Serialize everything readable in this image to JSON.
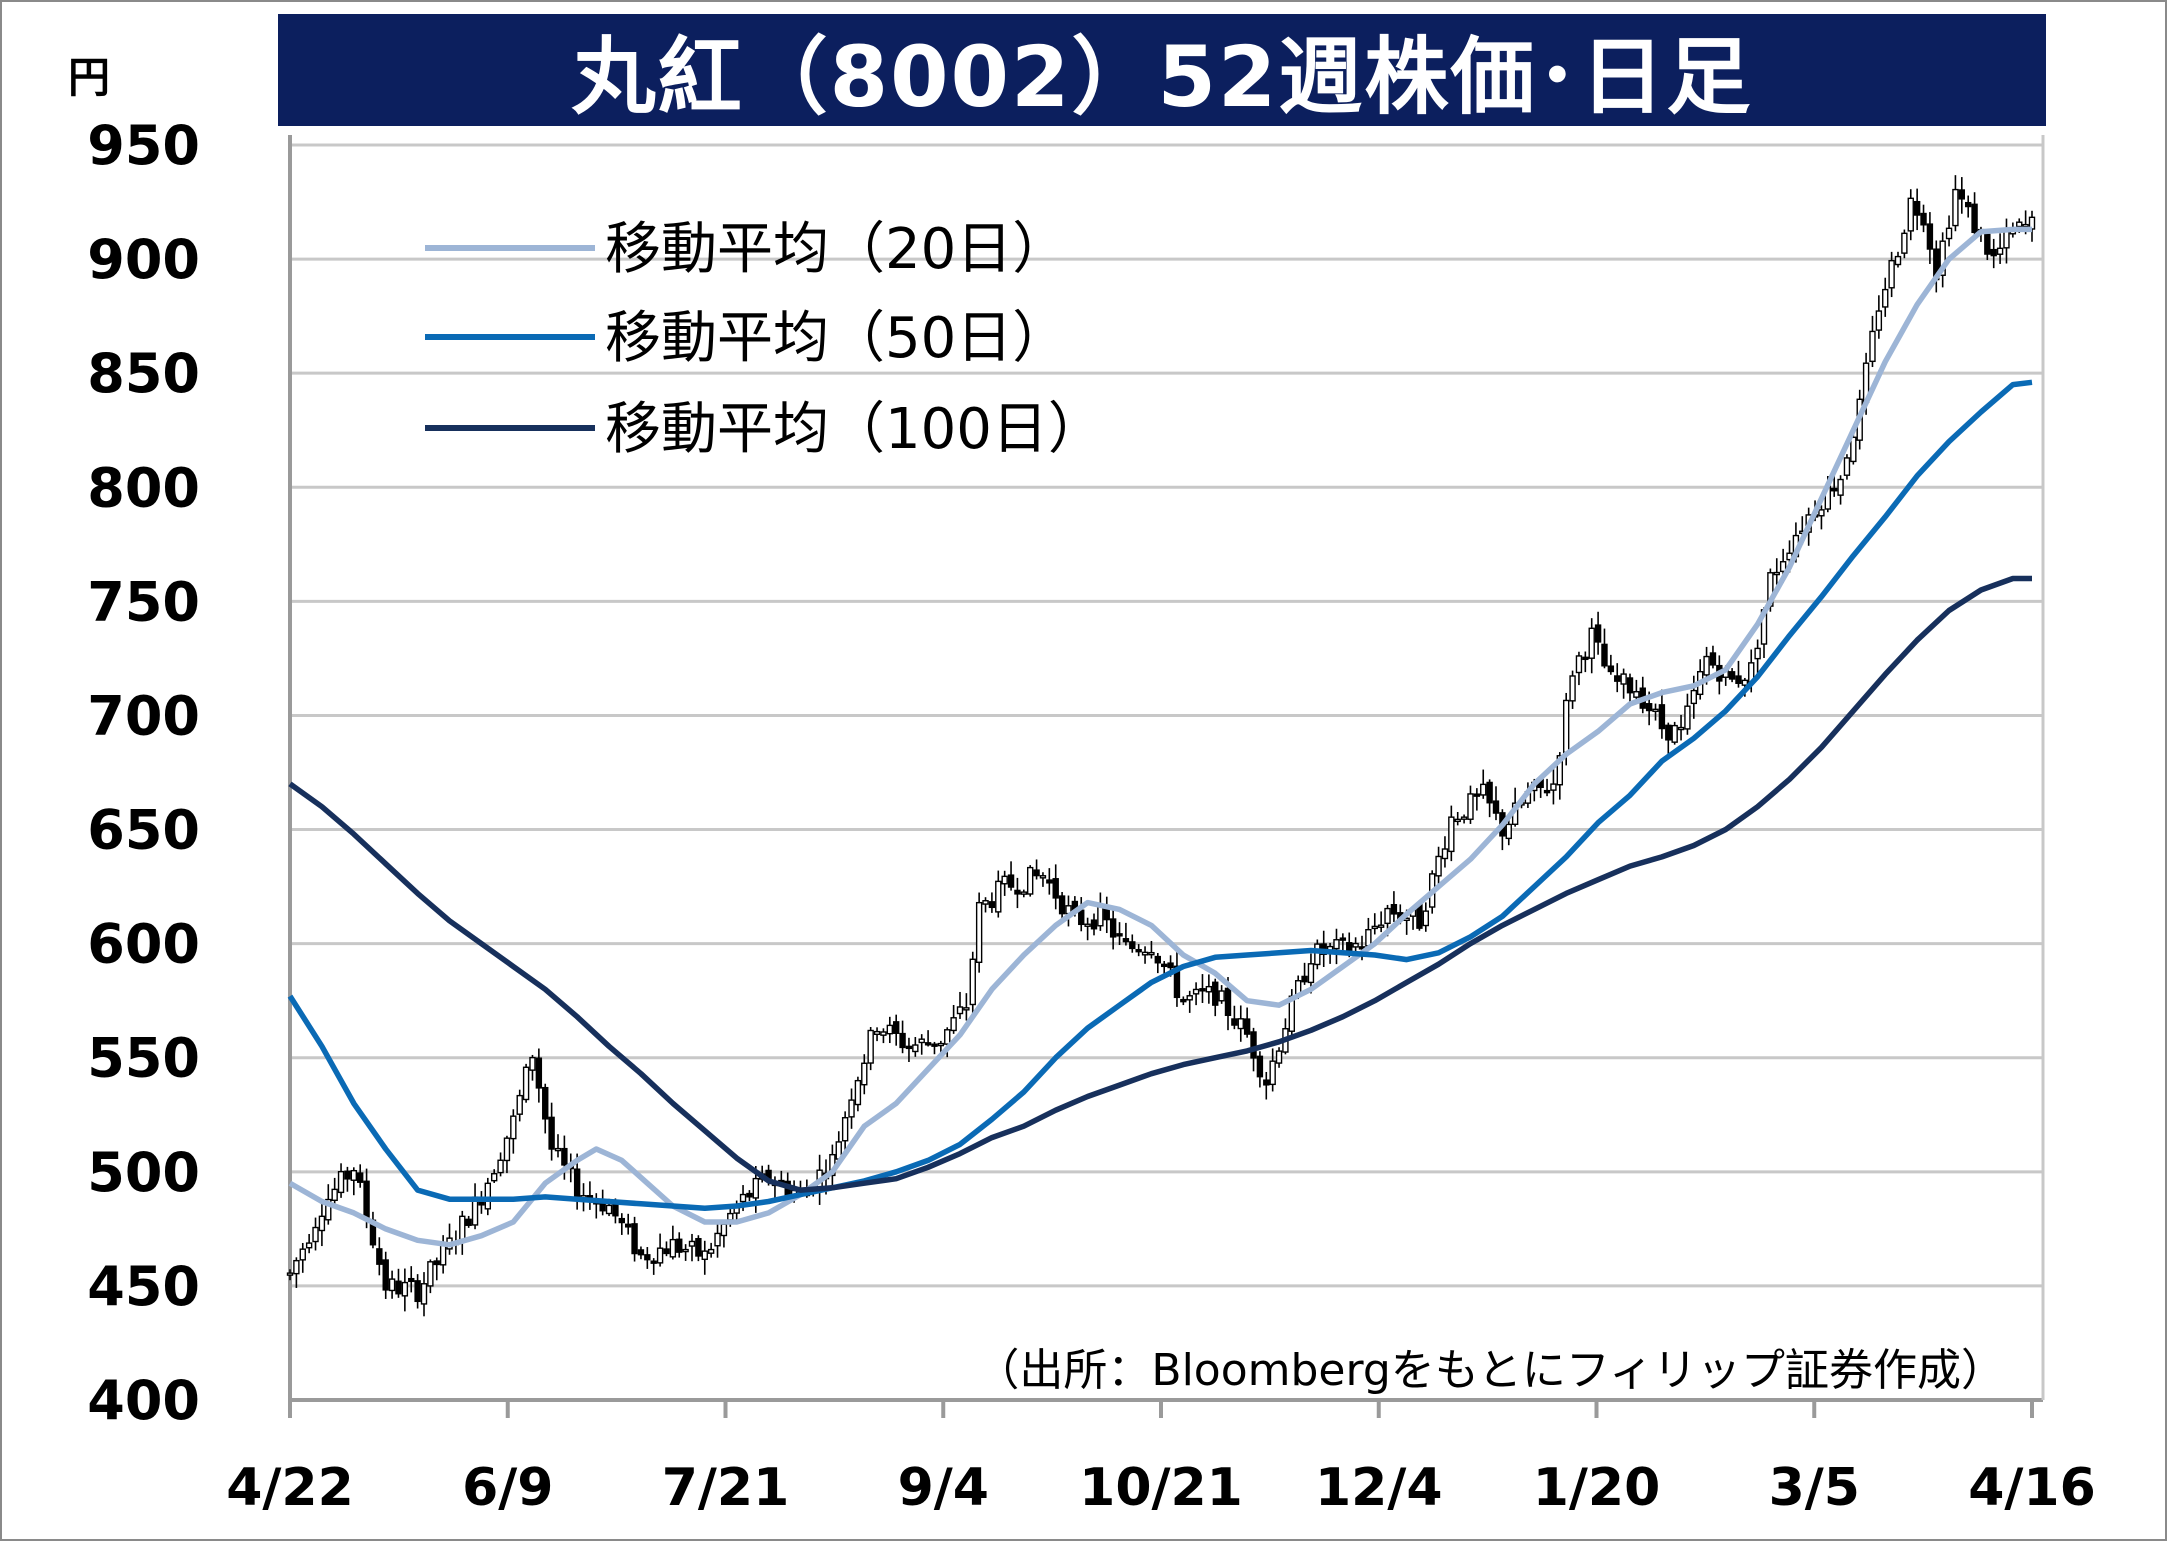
{
  "title": "丸紅（8002）52週株価･日足",
  "unit": "円",
  "source": "（出所：Bloombergをもとにフィリップ証券作成）",
  "colors": {
    "title_bg": "#0c1f5e",
    "candle": "#000000",
    "ma20": "#9db5d6",
    "ma50": "#0a6ab5",
    "ma100": "#17305c",
    "grid": "#c8c8c8"
  },
  "chart_data": {
    "type": "candlestick",
    "ylim": [
      400,
      950
    ],
    "yticks": [
      "400",
      "450",
      "500",
      "550",
      "600",
      "650",
      "700",
      "750",
      "800",
      "850",
      "900",
      "950"
    ],
    "x_tick_labels": [
      "4/22",
      "6/9",
      "7/21",
      "9/4",
      "10/21",
      "12/4",
      "1/20",
      "3/5",
      "4/16"
    ],
    "grid": true,
    "legend_position": "top-left",
    "legend": [
      "移動平均（20日）",
      "移動平均（50日）",
      "移動平均（100日）"
    ],
    "price_anchors": [
      [
        0,
        455
      ],
      [
        5,
        485
      ],
      [
        10,
        502
      ],
      [
        15,
        450
      ],
      [
        20,
        448
      ],
      [
        25,
        468
      ],
      [
        30,
        490
      ],
      [
        35,
        522
      ],
      [
        38,
        552
      ],
      [
        41,
        510
      ],
      [
        45,
        492
      ],
      [
        50,
        485
      ],
      [
        55,
        463
      ],
      [
        60,
        468
      ],
      [
        65,
        463
      ],
      [
        70,
        485
      ],
      [
        75,
        498
      ],
      [
        80,
        490
      ],
      [
        85,
        505
      ],
      [
        88,
        535
      ],
      [
        92,
        565
      ],
      [
        97,
        555
      ],
      [
        102,
        558
      ],
      [
        106,
        573
      ],
      [
        108,
        615
      ],
      [
        112,
        625
      ],
      [
        118,
        630
      ],
      [
        123,
        610
      ],
      [
        127,
        612
      ],
      [
        131,
        598
      ],
      [
        135,
        600
      ],
      [
        140,
        575
      ],
      [
        145,
        578
      ],
      [
        150,
        560
      ],
      [
        153,
        540
      ],
      [
        156,
        565
      ],
      [
        160,
        595
      ],
      [
        165,
        598
      ],
      [
        168,
        600
      ],
      [
        172,
        615
      ],
      [
        177,
        610
      ],
      [
        182,
        655
      ],
      [
        187,
        665
      ],
      [
        190,
        650
      ],
      [
        194,
        665
      ],
      [
        198,
        670
      ],
      [
        201,
        720
      ],
      [
        204,
        735
      ],
      [
        207,
        715
      ],
      [
        211,
        712
      ],
      [
        215,
        695
      ],
      [
        218,
        692
      ],
      [
        222,
        725
      ],
      [
        226,
        715
      ],
      [
        229,
        720
      ],
      [
        232,
        760
      ],
      [
        236,
        780
      ],
      [
        240,
        795
      ],
      [
        243,
        805
      ],
      [
        246,
        835
      ],
      [
        249,
        880
      ],
      [
        252,
        905
      ],
      [
        254,
        925
      ],
      [
        256,
        920
      ],
      [
        258,
        895
      ],
      [
        261,
        930
      ],
      [
        264,
        915
      ],
      [
        267,
        900
      ],
      [
        270,
        912
      ],
      [
        273,
        915
      ]
    ],
    "series": [
      {
        "name": "移動平均（20日）",
        "points": [
          [
            0,
            495
          ],
          [
            5,
            487
          ],
          [
            10,
            482
          ],
          [
            15,
            475
          ],
          [
            20,
            470
          ],
          [
            25,
            468
          ],
          [
            30,
            472
          ],
          [
            35,
            478
          ],
          [
            40,
            495
          ],
          [
            45,
            505
          ],
          [
            48,
            510
          ],
          [
            52,
            505
          ],
          [
            56,
            495
          ],
          [
            60,
            485
          ],
          [
            65,
            478
          ],
          [
            70,
            478
          ],
          [
            75,
            482
          ],
          [
            80,
            490
          ],
          [
            85,
            500
          ],
          [
            90,
            520
          ],
          [
            95,
            530
          ],
          [
            100,
            545
          ],
          [
            105,
            560
          ],
          [
            110,
            580
          ],
          [
            115,
            595
          ],
          [
            120,
            608
          ],
          [
            125,
            618
          ],
          [
            130,
            615
          ],
          [
            135,
            608
          ],
          [
            140,
            595
          ],
          [
            145,
            587
          ],
          [
            150,
            575
          ],
          [
            155,
            573
          ],
          [
            160,
            580
          ],
          [
            165,
            590
          ],
          [
            170,
            600
          ],
          [
            175,
            613
          ],
          [
            180,
            625
          ],
          [
            185,
            637
          ],
          [
            190,
            652
          ],
          [
            195,
            670
          ],
          [
            200,
            683
          ],
          [
            205,
            693
          ],
          [
            210,
            705
          ],
          [
            215,
            710
          ],
          [
            220,
            713
          ],
          [
            225,
            720
          ],
          [
            230,
            740
          ],
          [
            235,
            765
          ],
          [
            240,
            795
          ],
          [
            245,
            825
          ],
          [
            250,
            855
          ],
          [
            255,
            880
          ],
          [
            260,
            900
          ],
          [
            265,
            912
          ],
          [
            270,
            913
          ],
          [
            273,
            913
          ]
        ]
      },
      {
        "name": "移動平均（50日）",
        "points": [
          [
            0,
            577
          ],
          [
            5,
            555
          ],
          [
            10,
            530
          ],
          [
            15,
            510
          ],
          [
            20,
            492
          ],
          [
            25,
            488
          ],
          [
            30,
            488
          ],
          [
            35,
            488
          ],
          [
            40,
            489
          ],
          [
            45,
            488
          ],
          [
            50,
            487
          ],
          [
            55,
            486
          ],
          [
            60,
            485
          ],
          [
            65,
            484
          ],
          [
            70,
            485
          ],
          [
            75,
            487
          ],
          [
            80,
            490
          ],
          [
            85,
            493
          ],
          [
            90,
            496
          ],
          [
            95,
            500
          ],
          [
            100,
            505
          ],
          [
            105,
            512
          ],
          [
            110,
            523
          ],
          [
            115,
            535
          ],
          [
            120,
            550
          ],
          [
            125,
            563
          ],
          [
            130,
            573
          ],
          [
            135,
            583
          ],
          [
            140,
            590
          ],
          [
            145,
            594
          ],
          [
            150,
            595
          ],
          [
            155,
            596
          ],
          [
            160,
            597
          ],
          [
            165,
            596
          ],
          [
            170,
            595
          ],
          [
            175,
            593
          ],
          [
            180,
            596
          ],
          [
            185,
            603
          ],
          [
            190,
            612
          ],
          [
            195,
            625
          ],
          [
            200,
            638
          ],
          [
            205,
            653
          ],
          [
            210,
            665
          ],
          [
            215,
            680
          ],
          [
            220,
            690
          ],
          [
            225,
            702
          ],
          [
            230,
            717
          ],
          [
            235,
            735
          ],
          [
            240,
            752
          ],
          [
            245,
            770
          ],
          [
            250,
            787
          ],
          [
            255,
            805
          ],
          [
            260,
            820
          ],
          [
            265,
            833
          ],
          [
            270,
            845
          ],
          [
            273,
            846
          ]
        ]
      },
      {
        "name": "移動平均（100日）",
        "points": [
          [
            0,
            670
          ],
          [
            5,
            660
          ],
          [
            10,
            648
          ],
          [
            15,
            635
          ],
          [
            20,
            622
          ],
          [
            25,
            610
          ],
          [
            30,
            600
          ],
          [
            35,
            590
          ],
          [
            40,
            580
          ],
          [
            45,
            568
          ],
          [
            50,
            555
          ],
          [
            55,
            543
          ],
          [
            60,
            530
          ],
          [
            65,
            518
          ],
          [
            70,
            506
          ],
          [
            75,
            496
          ],
          [
            80,
            492
          ],
          [
            85,
            493
          ],
          [
            90,
            495
          ],
          [
            95,
            497
          ],
          [
            100,
            502
          ],
          [
            105,
            508
          ],
          [
            110,
            515
          ],
          [
            115,
            520
          ],
          [
            120,
            527
          ],
          [
            125,
            533
          ],
          [
            130,
            538
          ],
          [
            135,
            543
          ],
          [
            140,
            547
          ],
          [
            145,
            550
          ],
          [
            150,
            553
          ],
          [
            155,
            557
          ],
          [
            160,
            562
          ],
          [
            165,
            568
          ],
          [
            170,
            575
          ],
          [
            175,
            583
          ],
          [
            180,
            591
          ],
          [
            185,
            600
          ],
          [
            190,
            608
          ],
          [
            195,
            615
          ],
          [
            200,
            622
          ],
          [
            205,
            628
          ],
          [
            210,
            634
          ],
          [
            215,
            638
          ],
          [
            220,
            643
          ],
          [
            225,
            650
          ],
          [
            230,
            660
          ],
          [
            235,
            672
          ],
          [
            240,
            686
          ],
          [
            245,
            702
          ],
          [
            250,
            718
          ],
          [
            255,
            733
          ],
          [
            260,
            746
          ],
          [
            265,
            755
          ],
          [
            270,
            760
          ],
          [
            273,
            760
          ]
        ]
      }
    ]
  }
}
